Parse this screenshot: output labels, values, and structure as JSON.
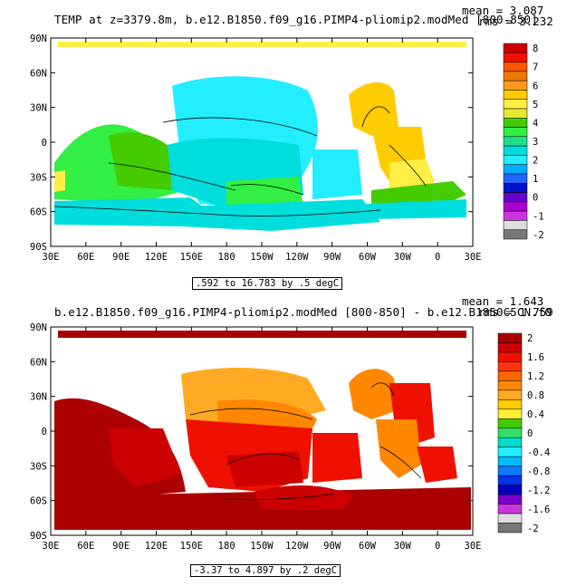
{
  "chart_data": [
    {
      "type": "heatmap",
      "title": "TEMP at z=3379.8m, b.e12.B1850.f09_g16.PIMP4-pliomip2.modMed [800-850]",
      "mean_label": "mean = 3.087",
      "rms_label": "rms = 3.232",
      "contour_info": ".592 to 16.783 by .5 degC",
      "x_tick_labels": [
        "30E",
        "60E",
        "90E",
        "120E",
        "150E",
        "180",
        "150W",
        "120W",
        "90W",
        "60W",
        "30W",
        "0",
        "30E"
      ],
      "y_tick_labels": [
        "90N",
        "60N",
        "30N",
        "0",
        "30S",
        "60S",
        "90S"
      ],
      "colorbar": {
        "labels": [
          "8",
          "7",
          "6",
          "5",
          "4",
          "3",
          "2",
          "1",
          "0",
          "-1",
          "-2"
        ],
        "colors": [
          "#cc0000",
          "#ee1100",
          "#ff5500",
          "#ee7700",
          "#ff9922",
          "#ffcc00",
          "#ffee44",
          "#e6e633",
          "#44cc00",
          "#33ee44",
          "#22dd88",
          "#00dddd",
          "#22eeff",
          "#00aaff",
          "#2266ff",
          "#0011cc",
          "#6600cc",
          "#aa00cc",
          "#cc33dd",
          "#dddddd",
          "#777777"
        ]
      }
    },
    {
      "type": "heatmap",
      "title": "b.e12.B1850.f09_g16.PIMP4-pliomip2.modMed [800-850] - b.e12.B1850C5CN.f0",
      "mean_label": "mean = 1.643",
      "rms_label": "rms = 1.759",
      "contour_info": "-3.37 to 4.897 by .2 degC",
      "x_tick_labels": [
        "30E",
        "60E",
        "90E",
        "120E",
        "150E",
        "180",
        "150W",
        "120W",
        "90W",
        "60W",
        "30W",
        "0",
        "30E"
      ],
      "y_tick_labels": [
        "90N",
        "60N",
        "30N",
        "0",
        "30S",
        "60S",
        "90S"
      ],
      "colorbar": {
        "labels": [
          "2",
          "1.6",
          "1.2",
          "0.8",
          "0.4",
          "0",
          "-0.4",
          "-0.8",
          "-1.2",
          "-1.6",
          "-2"
        ],
        "colors": [
          "#aa0000",
          "#cc0000",
          "#ee1100",
          "#ff3311",
          "#ff6600",
          "#ff8800",
          "#ffaa22",
          "#ffcc00",
          "#ffee33",
          "#44cc00",
          "#33dd66",
          "#00ddcc",
          "#22eeff",
          "#00bbff",
          "#1177ff",
          "#0033ee",
          "#0000bb",
          "#7700cc",
          "#cc33dd",
          "#dddddd",
          "#777777"
        ]
      }
    }
  ]
}
